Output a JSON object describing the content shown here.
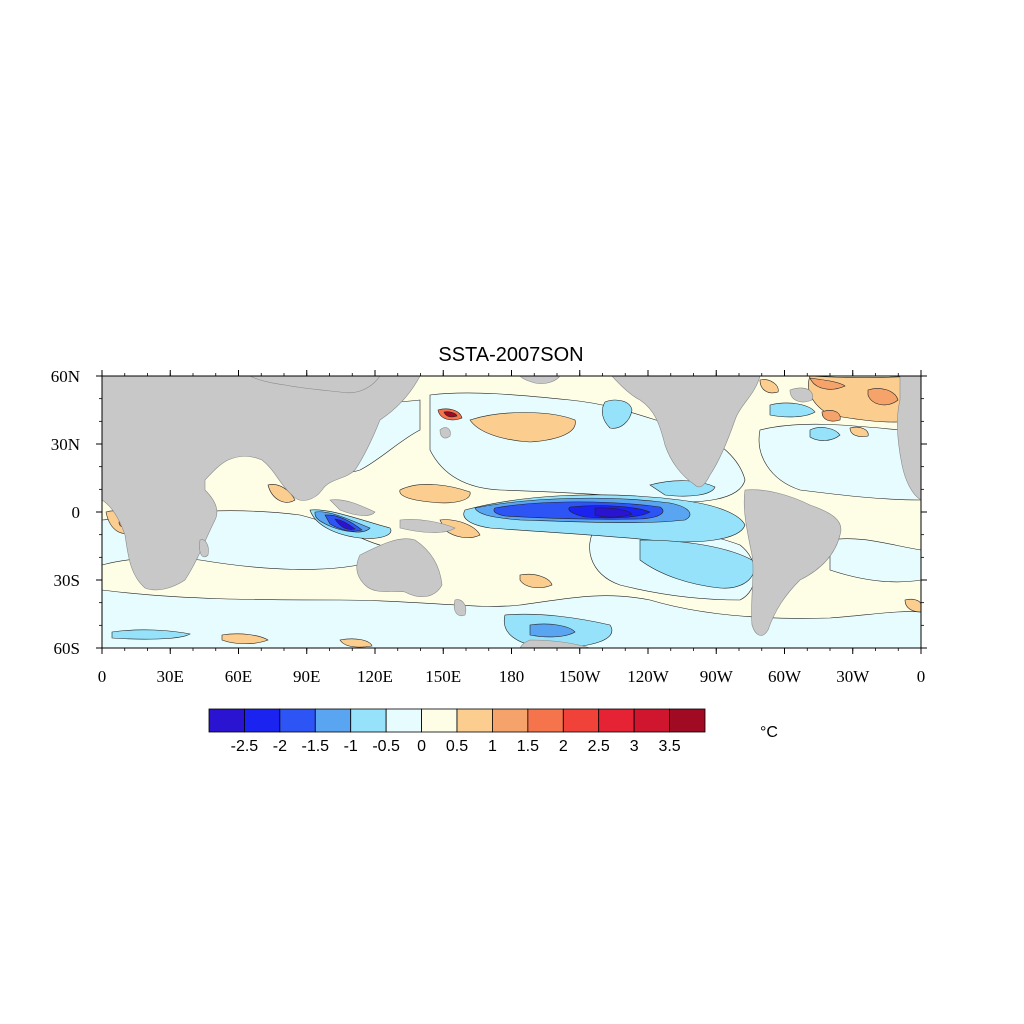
{
  "map": {
    "title": "SSTA-2007SON",
    "lat_labels": [
      "60N",
      "30N",
      "0",
      "30S",
      "60S"
    ],
    "lon_labels": [
      "0",
      "30E",
      "60E",
      "90E",
      "120E",
      "150E",
      "180",
      "150W",
      "120W",
      "90W",
      "60W",
      "30W",
      "0"
    ],
    "land_color": "#c8c8c8"
  },
  "colorbar": {
    "unit": "°C",
    "labels": [
      "-2.5",
      "-2",
      "-1.5",
      "-1",
      "-0.5",
      "0",
      "0.5",
      "1",
      "1.5",
      "2",
      "2.5",
      "3",
      "3.5"
    ],
    "colors": [
      "#2a14d2",
      "#1a23f0",
      "#2d55f6",
      "#5aa5f2",
      "#96e2fa",
      "#e6fcfe",
      "#fefde6",
      "#fbcd8e",
      "#f6a26b",
      "#f6744c",
      "#f04238",
      "#e62235",
      "#d0162f",
      "#a00a23"
    ]
  }
}
